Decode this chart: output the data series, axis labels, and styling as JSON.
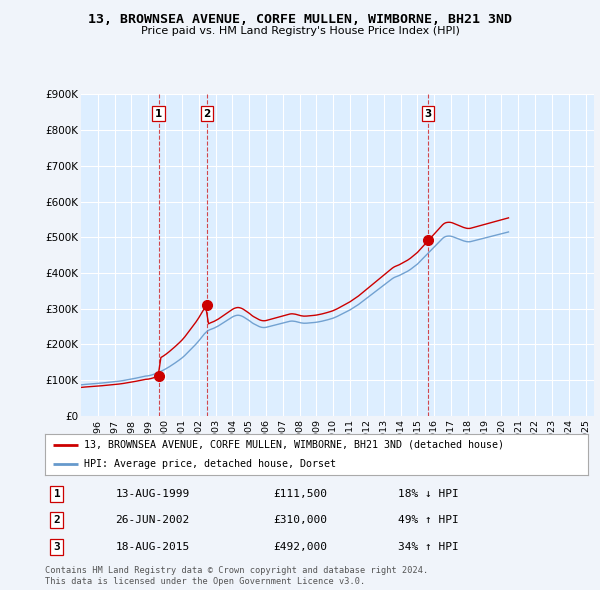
{
  "title": "13, BROWNSEA AVENUE, CORFE MULLEN, WIMBORNE, BH21 3ND",
  "subtitle": "Price paid vs. HM Land Registry's House Price Index (HPI)",
  "ylim": [
    0,
    900000
  ],
  "yticks": [
    0,
    100000,
    200000,
    300000,
    400000,
    500000,
    600000,
    700000,
    800000,
    900000
  ],
  "ytick_labels": [
    "£0",
    "£100K",
    "£200K",
    "£300K",
    "£400K",
    "£500K",
    "£600K",
    "£700K",
    "£800K",
    "£900K"
  ],
  "property_color": "#cc0000",
  "hpi_color": "#6699cc",
  "shade_color": "#ddeeff",
  "legend_property": "13, BROWNSEA AVENUE, CORFE MULLEN, WIMBORNE, BH21 3ND (detached house)",
  "legend_hpi": "HPI: Average price, detached house, Dorset",
  "transactions": [
    {
      "label": "1",
      "date": "13-AUG-1999",
      "price": "£111,500",
      "change": "18% ↓ HPI",
      "year": 1999.62
    },
    {
      "label": "2",
      "date": "26-JUN-2002",
      "price": "£310,000",
      "change": "49% ↑ HPI",
      "year": 2002.49
    },
    {
      "label": "3",
      "date": "18-AUG-2015",
      "price": "£492,000",
      "change": "34% ↑ HPI",
      "year": 2015.63
    }
  ],
  "transaction_values": [
    111500,
    310000,
    492000
  ],
  "footer": "Contains HM Land Registry data © Crown copyright and database right 2024.\nThis data is licensed under the Open Government Licence v3.0.",
  "background_color": "#f0f4fa",
  "plot_bg": "#ddeeff",
  "grid_color": "#ffffff",
  "hpi_monthly": [
    87000,
    87500,
    88000,
    88300,
    88600,
    88900,
    89200,
    89500,
    89800,
    90100,
    90400,
    90700,
    91000,
    91400,
    91800,
    92200,
    92600,
    93000,
    93400,
    93800,
    94200,
    94600,
    95000,
    95400,
    95800,
    96300,
    96800,
    97300,
    97800,
    98400,
    99000,
    99700,
    100400,
    101100,
    101800,
    102500,
    103200,
    104000,
    104800,
    105600,
    106400,
    107200,
    108000,
    108900,
    109800,
    110700,
    111600,
    112000,
    112400,
    113200,
    114200,
    115400,
    116700,
    118200,
    119800,
    121500,
    123200,
    125000,
    126800,
    128700,
    130800,
    133000,
    135300,
    137700,
    140200,
    142700,
    145300,
    148000,
    150700,
    153500,
    156300,
    159200,
    162200,
    165500,
    169100,
    173000,
    177000,
    181000,
    185000,
    189000,
    193000,
    197000,
    201000,
    205500,
    210000,
    215000,
    220000,
    225000,
    229500,
    233500,
    237000,
    239500,
    241500,
    243000,
    244500,
    246000,
    248000,
    250000,
    252000,
    254500,
    257000,
    259500,
    262000,
    264500,
    267000,
    269500,
    272000,
    274500,
    277000,
    279000,
    280500,
    281500,
    282000,
    281500,
    280500,
    279000,
    277000,
    274500,
    272000,
    269500,
    267000,
    264000,
    261000,
    258500,
    256500,
    254500,
    252500,
    250500,
    249000,
    248000,
    247500,
    247500,
    248000,
    249000,
    250000,
    251000,
    252000,
    253000,
    254000,
    255000,
    256000,
    257000,
    258000,
    259000,
    260000,
    261000,
    262000,
    263000,
    264000,
    265000,
    265500,
    265500,
    265000,
    264500,
    263500,
    262500,
    261500,
    260500,
    260000,
    259500,
    259500,
    259700,
    260000,
    260300,
    260600,
    261000,
    261400,
    261800,
    262300,
    263000,
    263700,
    264500,
    265300,
    266200,
    267200,
    268200,
    269200,
    270300,
    271400,
    272600,
    273900,
    275500,
    277200,
    279000,
    281000,
    283000,
    285000,
    287000,
    289000,
    291000,
    293000,
    295000,
    297000,
    299500,
    302000,
    304500,
    307000,
    309500,
    312000,
    315000,
    318000,
    321000,
    324000,
    327000,
    330000,
    333000,
    336000,
    339000,
    342000,
    345000,
    348000,
    351000,
    354000,
    357000,
    360000,
    363000,
    366000,
    369000,
    372000,
    375000,
    378000,
    381000,
    384000,
    386500,
    388500,
    390000,
    391500,
    393000,
    395000,
    397000,
    399000,
    401000,
    403000,
    405000,
    407500,
    410000,
    413000,
    416000,
    419000,
    422000,
    425000,
    429000,
    433000,
    437000,
    441000,
    445000,
    449000,
    453000,
    457000,
    461000,
    465000,
    469000,
    473000,
    477000,
    481000,
    485000,
    489000,
    493000,
    497000,
    500000,
    502000,
    503000,
    503500,
    503500,
    503000,
    502000,
    500500,
    499000,
    497500,
    496000,
    494500,
    493000,
    491500,
    490000,
    489000,
    488000,
    487500,
    487500,
    488000,
    489000,
    490000,
    491000,
    492000,
    493000,
    494000,
    495000,
    496000,
    497000,
    498000,
    499000,
    500000,
    501000,
    502000,
    503000,
    504000,
    505000,
    506000,
    507000,
    508000,
    509000,
    510000,
    511000,
    512000,
    513000,
    514000,
    515000
  ]
}
